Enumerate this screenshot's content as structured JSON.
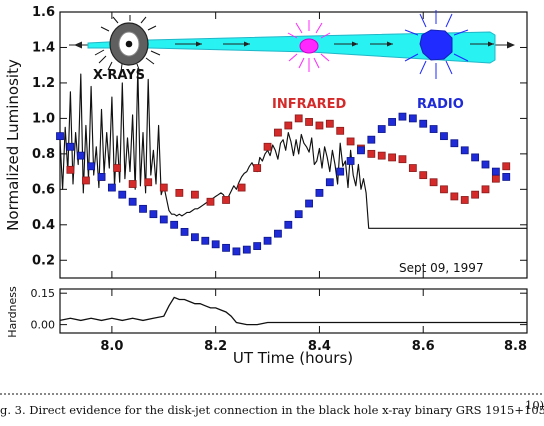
{
  "chart_data": {
    "type": "line",
    "figure_caption": "g. 3.  Direct evidence for the disk-jet connection in the black hole x-ray binary GRS 1915+105.",
    "caption_superscript": "10)",
    "xlabel": "UT Time (hours)",
    "ylabel": "Normalized Luminosity",
    "xlim": [
      7.9,
      8.8
    ],
    "ylim": [
      0.1,
      1.6
    ],
    "x_ticks": [
      "8.0",
      "8.2",
      "8.4",
      "8.6",
      "8.8"
    ],
    "x_tick_values": [
      8.0,
      8.2,
      8.4,
      8.6,
      8.8
    ],
    "y_ticks": [
      "0.2",
      "0.4",
      "0.6",
      "0.8",
      "1.0",
      "1.2",
      "1.4",
      "1.6"
    ],
    "y_tick_values": [
      0.2,
      0.4,
      0.6,
      0.8,
      1.0,
      1.2,
      1.4,
      1.6
    ],
    "annotation_date": "Sept 09, 1997",
    "component_labels": {
      "xrays": "X-RAYS",
      "infrared": "INFRARED",
      "radio": "RADIO"
    },
    "colors": {
      "xray": "#111111",
      "infrared": "#d42a2a",
      "radio": "#1f2bd6",
      "jet": "#25f2f2",
      "ir_blob": "#ff22ff",
      "radio_blob": "#1f2bff"
    },
    "series": [
      {
        "key": "xray_curve",
        "x": [
          7.9,
          7.905,
          7.91,
          7.915,
          7.92,
          7.925,
          7.93,
          7.935,
          7.94,
          7.945,
          7.95,
          7.955,
          7.96,
          7.965,
          7.97,
          7.975,
          7.98,
          7.985,
          7.99,
          7.995,
          8.0,
          8.005,
          8.01,
          8.015,
          8.02,
          8.025,
          8.03,
          8.035,
          8.04,
          8.045,
          8.05,
          8.055,
          8.06,
          8.065,
          8.07,
          8.075,
          8.08,
          8.085,
          8.09,
          8.095,
          8.1,
          8.105,
          8.11,
          8.115,
          8.12,
          8.125,
          8.13,
          8.135,
          8.14,
          8.145,
          8.15,
          8.155,
          8.16,
          8.165,
          8.17,
          8.175,
          8.18,
          8.185,
          8.19,
          8.195,
          8.2,
          8.205,
          8.21,
          8.215,
          8.22,
          8.225,
          8.23,
          8.235,
          8.24,
          8.245,
          8.25,
          8.255,
          8.26,
          8.265,
          8.27,
          8.275,
          8.28,
          8.285,
          8.29,
          8.295,
          8.3,
          8.305,
          8.31,
          8.315,
          8.32,
          8.325,
          8.33,
          8.335,
          8.34,
          8.345,
          8.35,
          8.355,
          8.36,
          8.365,
          8.37,
          8.375,
          8.38,
          8.385,
          8.39,
          8.395,
          8.4,
          8.405,
          8.41,
          8.415,
          8.42,
          8.425,
          8.43,
          8.435,
          8.44,
          8.445,
          8.45,
          8.455,
          8.46,
          8.465,
          8.47,
          8.475,
          8.48,
          8.485,
          8.49,
          8.495,
          8.8
        ],
        "y": [
          0.88,
          0.6,
          0.95,
          0.7,
          1.15,
          0.63,
          0.92,
          0.74,
          1.25,
          0.58,
          0.96,
          0.66,
          1.18,
          0.68,
          0.84,
          0.61,
          1.05,
          0.69,
          0.92,
          0.72,
          1.12,
          0.62,
          0.9,
          0.64,
          1.2,
          0.66,
          0.89,
          0.7,
          1.02,
          0.6,
          1.28,
          0.62,
          0.92,
          0.58,
          1.22,
          0.68,
          0.82,
          0.63,
          0.96,
          0.57,
          0.62,
          0.55,
          0.48,
          0.46,
          0.46,
          0.45,
          0.46,
          0.45,
          0.46,
          0.47,
          0.47,
          0.48,
          0.49,
          0.49,
          0.5,
          0.51,
          0.52,
          0.53,
          0.54,
          0.55,
          0.56,
          0.57,
          0.58,
          0.57,
          0.54,
          0.56,
          0.59,
          0.62,
          0.6,
          0.64,
          0.67,
          0.69,
          0.7,
          0.73,
          0.75,
          0.72,
          0.7,
          0.78,
          0.76,
          0.8,
          0.82,
          0.79,
          0.85,
          0.82,
          0.77,
          0.86,
          0.88,
          0.82,
          0.92,
          0.87,
          0.79,
          0.88,
          0.8,
          0.91,
          0.86,
          0.84,
          0.81,
          0.89,
          0.74,
          0.76,
          0.83,
          0.72,
          0.84,
          0.78,
          0.7,
          0.82,
          0.74,
          0.63,
          0.86,
          0.73,
          0.76,
          0.61,
          0.82,
          0.68,
          0.62,
          0.74,
          0.6,
          0.66,
          0.58,
          0.38,
          0.38
        ]
      },
      {
        "key": "infrared_points",
        "x": [
          7.92,
          7.95,
          7.98,
          8.01,
          8.04,
          8.07,
          8.1,
          8.13,
          8.16,
          8.19,
          8.22,
          8.25,
          8.28,
          8.3,
          8.32,
          8.34,
          8.36,
          8.38,
          8.4,
          8.42,
          8.44,
          8.46,
          8.48,
          8.5,
          8.52,
          8.54,
          8.56,
          8.58,
          8.6,
          8.62,
          8.64,
          8.66,
          8.68,
          8.7,
          8.72,
          8.74,
          8.76
        ],
        "y": [
          0.71,
          0.65,
          0.67,
          0.72,
          0.63,
          0.64,
          0.61,
          0.58,
          0.57,
          0.53,
          0.54,
          0.61,
          0.72,
          0.84,
          0.92,
          0.96,
          1.0,
          0.98,
          0.96,
          0.97,
          0.93,
          0.87,
          0.83,
          0.8,
          0.79,
          0.78,
          0.77,
          0.72,
          0.68,
          0.64,
          0.6,
          0.56,
          0.54,
          0.57,
          0.6,
          0.66,
          0.73
        ]
      },
      {
        "key": "radio_points",
        "x": [
          7.9,
          7.92,
          7.94,
          7.96,
          7.98,
          8.0,
          8.02,
          8.04,
          8.06,
          8.08,
          8.1,
          8.12,
          8.14,
          8.16,
          8.18,
          8.2,
          8.22,
          8.24,
          8.26,
          8.28,
          8.3,
          8.32,
          8.34,
          8.36,
          8.38,
          8.4,
          8.42,
          8.44,
          8.46,
          8.48,
          8.5,
          8.52,
          8.54,
          8.56,
          8.58,
          8.6,
          8.62,
          8.64,
          8.66,
          8.68,
          8.7,
          8.72,
          8.74,
          8.76
        ],
        "y": [
          0.9,
          0.84,
          0.79,
          0.73,
          0.67,
          0.61,
          0.57,
          0.53,
          0.49,
          0.46,
          0.43,
          0.4,
          0.36,
          0.33,
          0.31,
          0.29,
          0.27,
          0.25,
          0.26,
          0.28,
          0.31,
          0.35,
          0.4,
          0.46,
          0.52,
          0.58,
          0.64,
          0.7,
          0.76,
          0.82,
          0.88,
          0.94,
          0.98,
          1.01,
          1.0,
          0.97,
          0.94,
          0.9,
          0.86,
          0.82,
          0.78,
          0.74,
          0.7,
          0.67
        ]
      }
    ],
    "hardness_panel": {
      "ylabel": "Hardness",
      "y_ticks": [
        "0.15",
        "0.00"
      ],
      "y_tick_values": [
        0.15,
        0.0
      ],
      "ylim": [
        -0.04,
        0.17
      ],
      "x": [
        7.9,
        7.92,
        7.94,
        7.96,
        7.98,
        8.0,
        8.02,
        8.04,
        8.06,
        8.08,
        8.1,
        8.11,
        8.12,
        8.13,
        8.14,
        8.15,
        8.16,
        8.17,
        8.18,
        8.19,
        8.2,
        8.21,
        8.22,
        8.23,
        8.24,
        8.26,
        8.28,
        8.3,
        8.32,
        8.34,
        8.36,
        8.38,
        8.4,
        8.42,
        8.44,
        8.46,
        8.48,
        8.5,
        8.8
      ],
      "y": [
        0.02,
        0.03,
        0.02,
        0.03,
        0.02,
        0.03,
        0.02,
        0.03,
        0.02,
        0.03,
        0.04,
        0.09,
        0.13,
        0.12,
        0.12,
        0.11,
        0.1,
        0.1,
        0.09,
        0.08,
        0.08,
        0.07,
        0.06,
        0.04,
        0.01,
        0.0,
        0.0,
        0.01,
        0.01,
        0.01,
        0.01,
        0.01,
        0.01,
        0.01,
        0.01,
        0.01,
        0.01,
        0.01,
        0.01
      ]
    }
  }
}
